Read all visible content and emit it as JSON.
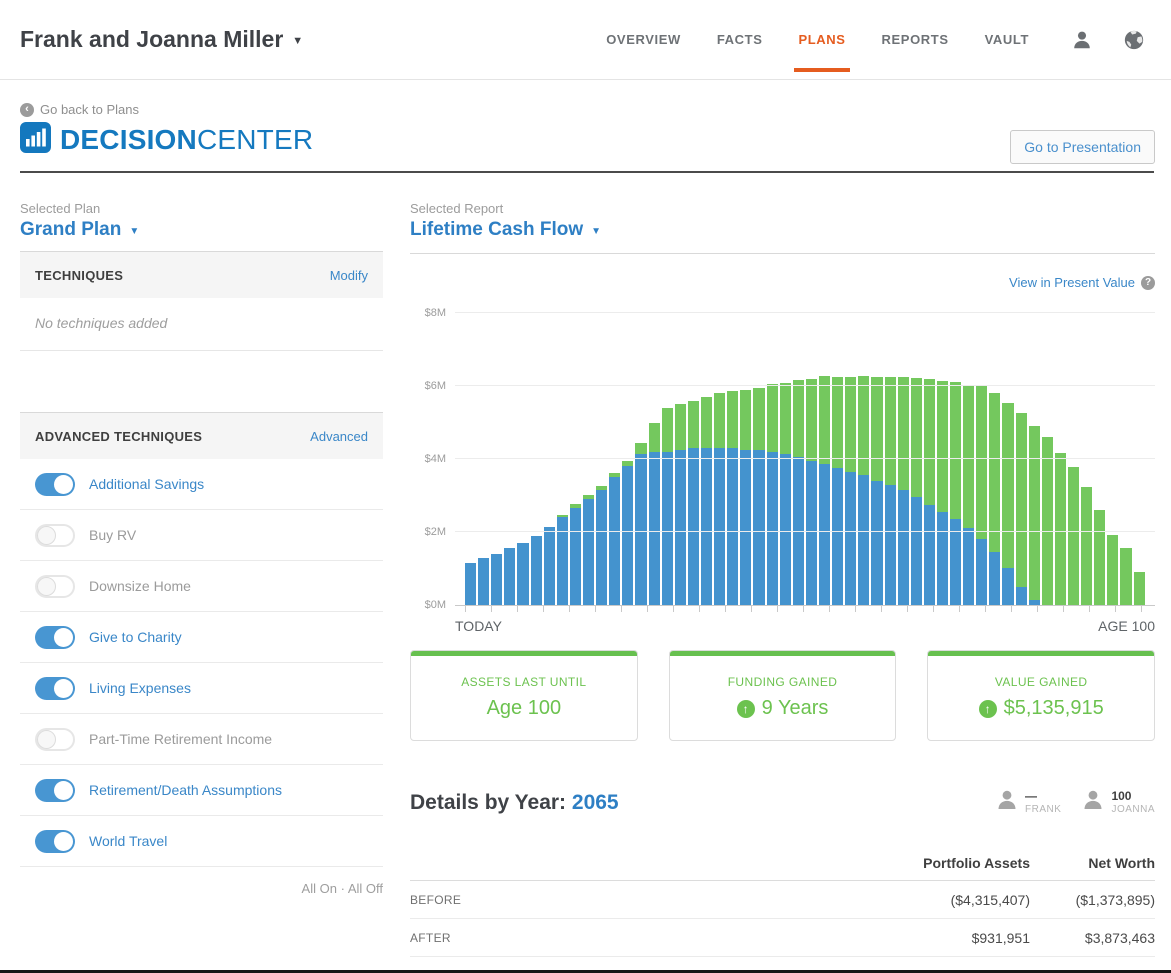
{
  "header": {
    "client_name": "Frank and Joanna Miller",
    "nav": [
      "OVERVIEW",
      "FACTS",
      "PLANS",
      "REPORTS",
      "VAULT"
    ],
    "active_nav": "PLANS"
  },
  "subheader": {
    "back_link": "Go back to Plans",
    "brand_bold": "DECISION",
    "brand_light": "CENTER",
    "presentation_button": "Go to Presentation"
  },
  "sidebar": {
    "selected_plan_label": "Selected Plan",
    "selected_plan_name": "Grand Plan",
    "techniques": {
      "title": "TECHNIQUES",
      "action": "Modify",
      "empty_text": "No techniques added"
    },
    "advanced": {
      "title": "ADVANCED TECHNIQUES",
      "action": "Advanced",
      "items": [
        {
          "label": "Additional Savings",
          "on": true
        },
        {
          "label": "Buy RV",
          "on": false
        },
        {
          "label": "Downsize Home",
          "on": false
        },
        {
          "label": "Give to Charity",
          "on": true
        },
        {
          "label": "Living Expenses",
          "on": true
        },
        {
          "label": "Part-Time Retirement Income",
          "on": false
        },
        {
          "label": "Retirement/Death Assumptions",
          "on": true
        },
        {
          "label": "World Travel",
          "on": true
        }
      ]
    },
    "footer": {
      "all_on": "All On",
      "separator": "·",
      "all_off": "All Off"
    }
  },
  "report": {
    "selected_report_label": "Selected Report",
    "selected_report_name": "Lifetime Cash Flow",
    "present_value_link": "View in Present Value"
  },
  "chart_data": {
    "type": "bar",
    "stacked": true,
    "title": "Lifetime Cash Flow",
    "x_start_label": "TODAY",
    "x_end_label": "AGE 100",
    "y_ticks": [
      "$0M",
      "$2M",
      "$4M",
      "$6M",
      "$8M"
    ],
    "ylim": [
      0,
      8
    ],
    "unit": "USD millions",
    "grid": true,
    "legend": "none",
    "n_bars": 52,
    "series": [
      {
        "name": "blue-base-assets",
        "color": "#4493ce",
        "values": [
          1.15,
          1.3,
          1.4,
          1.55,
          1.7,
          1.9,
          2.15,
          2.4,
          2.65,
          2.9,
          3.15,
          3.5,
          3.8,
          4.15,
          4.2,
          4.2,
          4.25,
          4.3,
          4.3,
          4.3,
          4.3,
          4.25,
          4.25,
          4.2,
          4.15,
          4.05,
          3.95,
          3.85,
          3.75,
          3.65,
          3.55,
          3.4,
          3.3,
          3.15,
          2.95,
          2.75,
          2.55,
          2.35,
          2.1,
          1.8,
          1.45,
          1.0,
          0.5,
          0.15,
          0,
          0,
          0,
          0,
          0,
          0,
          0,
          0
        ]
      },
      {
        "name": "green-gained-value",
        "color": "#74c85e",
        "values": [
          0,
          0,
          0,
          0,
          0,
          0,
          0,
          0.05,
          0.1,
          0.1,
          0.1,
          0.1,
          0.15,
          0.3,
          0.8,
          1.2,
          1.25,
          1.3,
          1.4,
          1.5,
          1.55,
          1.65,
          1.7,
          1.85,
          1.95,
          2.1,
          2.25,
          2.4,
          2.5,
          2.6,
          2.7,
          2.85,
          2.95,
          3.1,
          3.25,
          3.45,
          3.6,
          3.75,
          3.9,
          4.23,
          4.36,
          4.53,
          4.76,
          4.78,
          4.6,
          4.16,
          3.78,
          3.23,
          2.6,
          1.92,
          1.56,
          0.9
        ]
      }
    ]
  },
  "cards": [
    {
      "label": "ASSETS LAST UNTIL",
      "value": "Age 100",
      "arrow": false
    },
    {
      "label": "FUNDING GAINED",
      "value": "9 Years",
      "arrow": true
    },
    {
      "label": "VALUE GAINED",
      "value": "$5,135,915",
      "arrow": true
    }
  ],
  "details": {
    "title": "Details by Year:",
    "year": "2065",
    "persons": [
      {
        "value": "—",
        "name": "FRANK"
      },
      {
        "value": "100",
        "name": "JOANNA"
      }
    ]
  },
  "table": {
    "columns": [
      "Portfolio Assets",
      "Net Worth"
    ],
    "rows": [
      {
        "label": "BEFORE",
        "values": [
          "($4,315,407)",
          "($1,373,895)"
        ]
      },
      {
        "label": "AFTER",
        "values": [
          "$931,951",
          "$3,873,463"
        ]
      }
    ]
  },
  "colors": {
    "accent_blue": "#2e7fc4",
    "link_blue": "#3a87c8",
    "brand_blue": "#1579bf",
    "active_orange": "#e55c1f",
    "success_green": "#6cc24f",
    "chart_blue": "#4493ce",
    "chart_green": "#74c85e"
  }
}
